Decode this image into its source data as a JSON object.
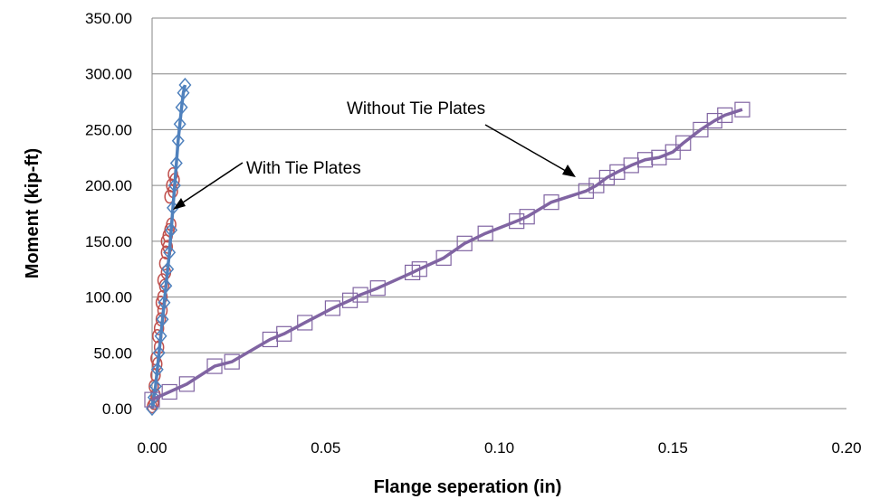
{
  "chart_data": {
    "type": "scatter",
    "title": "",
    "xlabel": "Flange seperation (in)",
    "ylabel": "Moment (kip-ft)",
    "xlim": [
      0,
      0.2
    ],
    "ylim": [
      0,
      350
    ],
    "xticks": [
      0.0,
      0.05,
      0.1,
      0.15,
      0.2
    ],
    "yticks": [
      0,
      50,
      100,
      150,
      200,
      250,
      300,
      350
    ],
    "xtick_labels": [
      "0.00",
      "0.05",
      "0.10",
      "0.15",
      "0.20"
    ],
    "ytick_labels": [
      "0.00",
      "50.00",
      "100.00",
      "150.00",
      "200.00",
      "250.00",
      "300.00",
      "350.00"
    ],
    "grid": "horizontal",
    "legend": "none",
    "series": [
      {
        "marker": "circle",
        "color": "#C0504D",
        "line": false,
        "x": [
          0.0,
          0.0005,
          0.001,
          0.0005,
          0.001,
          0.0015,
          0.001,
          0.002,
          0.0015,
          0.002,
          0.0025,
          0.003,
          0.0025,
          0.003,
          0.0035,
          0.003,
          0.004,
          0.0035,
          0.004,
          0.0045,
          0.004,
          0.0045,
          0.005,
          0.0055,
          0.005,
          0.006,
          0.0055,
          0.0065,
          0.006
        ],
        "y": [
          2,
          5,
          12,
          20,
          30,
          40,
          45,
          55,
          65,
          72,
          80,
          88,
          95,
          100,
          110,
          115,
          122,
          130,
          140,
          145,
          150,
          155,
          160,
          165,
          190,
          195,
          200,
          205,
          210
        ]
      },
      {
        "marker": "diamond",
        "color": "#4F81BD",
        "line": true,
        "x": [
          0.0,
          0.0005,
          0.001,
          0.0015,
          0.002,
          0.0025,
          0.003,
          0.0035,
          0.004,
          0.0045,
          0.005,
          0.0055,
          0.006,
          0.0065,
          0.007,
          0.0075,
          0.008,
          0.0085,
          0.009,
          0.0095
        ],
        "y": [
          0,
          10,
          20,
          35,
          50,
          65,
          80,
          95,
          110,
          125,
          140,
          160,
          180,
          200,
          220,
          240,
          255,
          270,
          283,
          290
        ]
      },
      {
        "marker": "square",
        "color": "#8064A2",
        "line": true,
        "x": [
          0.0,
          0.005,
          0.01,
          0.018,
          0.023,
          0.034,
          0.038,
          0.044,
          0.052,
          0.057,
          0.06,
          0.065,
          0.075,
          0.077,
          0.084,
          0.09,
          0.096,
          0.105,
          0.108,
          0.115,
          0.125,
          0.128,
          0.131,
          0.134,
          0.138,
          0.142,
          0.146,
          0.15,
          0.153,
          0.158,
          0.162,
          0.165,
          0.17
        ],
        "y": [
          8,
          15,
          22,
          38,
          42,
          62,
          67,
          77,
          90,
          97,
          102,
          108,
          122,
          125,
          135,
          148,
          157,
          168,
          172,
          185,
          195,
          200,
          207,
          212,
          218,
          223,
          225,
          230,
          238,
          250,
          258,
          263,
          268
        ]
      }
    ],
    "annotations": [
      {
        "text": "With Tie Plates"
      },
      {
        "text": "Without Tie Plates"
      }
    ]
  }
}
